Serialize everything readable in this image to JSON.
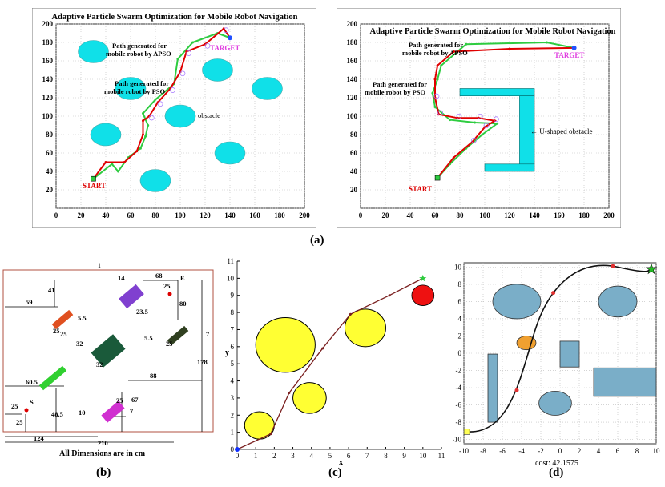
{
  "labels": {
    "a": "(a)",
    "b": "(b)",
    "c": "(c)",
    "d": "(d)"
  },
  "panel_a_left": {
    "title": "Adaptive Particle Swarm Optimization for Mobile Robot Navigation",
    "apso_label_1": "Path generated for",
    "apso_label_2": "mobile robot by APSO",
    "pso_label_1": "Path generated for",
    "pso_label_2": "mobile robot by PSO",
    "obstacle_label": "obstacle",
    "start": "START",
    "target": "TARGET",
    "xticks": [
      "0",
      "20",
      "40",
      "60",
      "80",
      "100",
      "120",
      "140",
      "160",
      "180",
      "200"
    ],
    "yticks": [
      "20",
      "40",
      "60",
      "80",
      "100",
      "120",
      "140",
      "160",
      "180",
      "200"
    ],
    "xlim": [
      0,
      200
    ],
    "ylim": [
      0,
      200
    ],
    "obstacles": [
      [
        30,
        170
      ],
      [
        60,
        130
      ],
      [
        130,
        150
      ],
      [
        170,
        130
      ],
      [
        40,
        80
      ],
      [
        100,
        100
      ],
      [
        140,
        60
      ],
      [
        80,
        30
      ]
    ],
    "apso_path": [
      [
        30,
        32
      ],
      [
        40,
        50
      ],
      [
        55,
        50
      ],
      [
        65,
        62
      ],
      [
        70,
        80
      ],
      [
        70,
        95
      ],
      [
        75,
        100
      ],
      [
        82,
        115
      ],
      [
        92,
        130
      ],
      [
        100,
        148
      ],
      [
        105,
        170
      ],
      [
        120,
        178
      ],
      [
        135,
        195
      ],
      [
        140,
        185
      ]
    ],
    "pso_path": [
      [
        30,
        32
      ],
      [
        45,
        48
      ],
      [
        50,
        40
      ],
      [
        58,
        55
      ],
      [
        68,
        65
      ],
      [
        72,
        78
      ],
      [
        74,
        90
      ],
      [
        70,
        103
      ],
      [
        80,
        118
      ],
      [
        95,
        135
      ],
      [
        98,
        162
      ],
      [
        110,
        180
      ],
      [
        130,
        190
      ],
      [
        140,
        185
      ]
    ],
    "start_pt": [
      30,
      32
    ],
    "target_pt": [
      140,
      185
    ]
  },
  "panel_a_right": {
    "title": "Adaptive Particle Swarm Optimization for Mobile Robot Navigation",
    "apso_label_1": "Path generated for",
    "apso_label_2": "mobile robot by APSO",
    "pso_label_1": "Path generated for",
    "pso_label_2": "mobile robot by PSO",
    "obstacle_label": "← U-shaped obstacle",
    "start": "START",
    "target": "TARGET",
    "xticks": [
      "0",
      "20",
      "40",
      "60",
      "80",
      "100",
      "120",
      "140",
      "160",
      "180",
      "200"
    ],
    "yticks": [
      "20",
      "40",
      "60",
      "80",
      "100",
      "120",
      "140",
      "160",
      "180",
      "200"
    ],
    "xlim": [
      0,
      200
    ],
    "ylim": [
      0,
      200
    ],
    "apso_path": [
      [
        62,
        33
      ],
      [
        75,
        55
      ],
      [
        90,
        72
      ],
      [
        100,
        88
      ],
      [
        108,
        95
      ],
      [
        95,
        98
      ],
      [
        78,
        98
      ],
      [
        63,
        102
      ],
      [
        60,
        120
      ],
      [
        60,
        140
      ],
      [
        62,
        155
      ],
      [
        75,
        170
      ],
      [
        120,
        173
      ],
      [
        172,
        174
      ]
    ],
    "pso_path": [
      [
        62,
        33
      ],
      [
        72,
        48
      ],
      [
        85,
        65
      ],
      [
        98,
        80
      ],
      [
        110,
        92
      ],
      [
        92,
        93
      ],
      [
        72,
        96
      ],
      [
        60,
        110
      ],
      [
        58,
        125
      ],
      [
        62,
        140
      ],
      [
        65,
        155
      ],
      [
        85,
        178
      ],
      [
        150,
        180
      ],
      [
        172,
        174
      ]
    ],
    "start_pt": [
      62,
      33
    ],
    "target_pt": [
      172,
      174
    ]
  },
  "panel_b": {
    "title_num": "1",
    "note": "All Dimensions are in cm",
    "dims": [
      "59",
      "41",
      "5.5",
      "25",
      "25",
      "14",
      "23.5",
      "68",
      "E",
      "25",
      "80",
      "5.5",
      "25",
      "7",
      "178",
      "32",
      "32",
      "60.5",
      "25",
      "S",
      "88",
      "25",
      "48.5",
      "67",
      "7",
      "10",
      "25",
      "124",
      "210"
    ],
    "blocks": [
      [
        "(25x5.5)"
      ],
      [
        "(25x14)"
      ],
      [
        "(5.5x25)"
      ],
      [
        "(32x32)"
      ],
      [
        "(60.5x5.5)"
      ],
      [
        "(25x7)"
      ]
    ]
  },
  "panel_c": {
    "xlabel": "x",
    "ylabel": "y",
    "xticks": [
      "0",
      "1",
      "2",
      "3",
      "4",
      "5",
      "6",
      "7",
      "8",
      "9",
      "10",
      "11"
    ],
    "yticks": [
      "0",
      "1",
      "2",
      "3",
      "4",
      "5",
      "6",
      "7",
      "8",
      "9",
      "10",
      "11"
    ],
    "xlim": [
      0,
      11
    ],
    "ylim": [
      0,
      11
    ],
    "circles": [
      [
        1.2,
        1.4,
        0.8
      ],
      [
        2.6,
        6.1,
        1.6
      ],
      [
        3.9,
        3.0,
        0.9
      ],
      [
        6.9,
        7.1,
        1.1
      ]
    ],
    "goal_circle": [
      10,
      9,
      0.6
    ],
    "path": [
      [
        0,
        0
      ],
      [
        1.8,
        0.9
      ],
      [
        2.8,
        3.3
      ],
      [
        4.6,
        5.9
      ],
      [
        6.1,
        7.9
      ],
      [
        8.2,
        9.0
      ],
      [
        10,
        10
      ]
    ],
    "start_pt": [
      0,
      0
    ],
    "goal_pt": [
      10,
      10
    ]
  },
  "panel_d": {
    "caption": "cost: 42.1575",
    "xticks": [
      "-10",
      "-8",
      "-6",
      "-4",
      "-2",
      "0",
      "2",
      "4",
      "6",
      "8",
      "10"
    ],
    "yticks": [
      "10",
      "8",
      "6",
      "4",
      "2",
      "0",
      "-2",
      "-4",
      "-6",
      "-8",
      "-10"
    ],
    "xlim": [
      -10,
      10
    ],
    "ylim": [
      -10.5,
      10.5
    ],
    "ellipses": [
      [
        -4.5,
        6,
        2.5,
        2
      ],
      [
        6,
        6,
        2,
        1.8
      ],
      [
        -3.5,
        1.2,
        1,
        0.8
      ],
      [
        -0.5,
        -5.8,
        1.7,
        1.4
      ]
    ],
    "rects": [
      [
        -7.5,
        -8,
        1,
        7.9
      ],
      [
        0,
        -1.6,
        2,
        3
      ],
      [
        3.5,
        -5,
        6.5,
        3.3
      ]
    ],
    "start_pt": [
      -9.7,
      -9.1
    ],
    "goal_pt": [
      9.5,
      9.8
    ],
    "waypoints": [
      [
        -4.5,
        -4.3
      ],
      [
        -0.7,
        7
      ],
      [
        5.5,
        10.1
      ]
    ]
  }
}
